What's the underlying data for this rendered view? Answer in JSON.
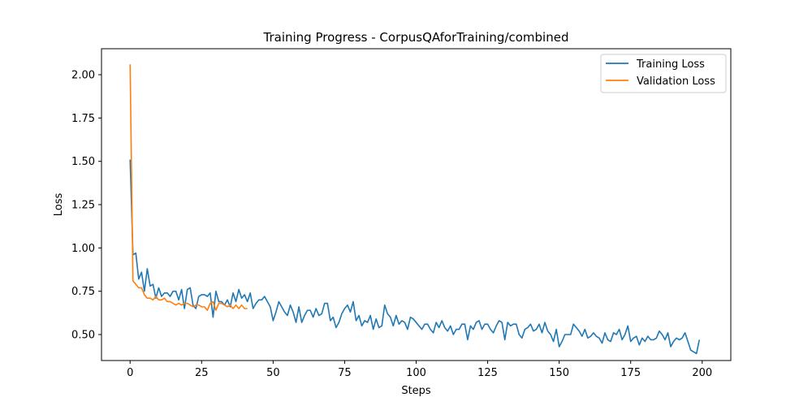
{
  "chart_data": {
    "type": "line",
    "title": "Training Progress - CorpusQAforTraining/combined",
    "xlabel": "Steps",
    "ylabel": "Loss",
    "xlim": [
      -10,
      210
    ],
    "ylim": [
      0.35,
      2.15
    ],
    "xticks": [
      0,
      25,
      50,
      75,
      100,
      125,
      150,
      175,
      200
    ],
    "yticks": [
      0.5,
      0.75,
      1.0,
      1.25,
      1.5,
      1.75,
      2.0
    ],
    "ytick_labels": [
      "0.50",
      "0.75",
      "1.00",
      "1.25",
      "1.50",
      "1.75",
      "2.00"
    ],
    "grid": false,
    "legend_position": "top-right",
    "series": [
      {
        "name": "Training Loss",
        "color": "#1f77b4",
        "x_start": 0,
        "x_step": 1,
        "values": [
          1.51,
          0.96,
          0.97,
          0.82,
          0.86,
          0.75,
          0.88,
          0.78,
          0.79,
          0.71,
          0.77,
          0.72,
          0.74,
          0.74,
          0.72,
          0.75,
          0.75,
          0.7,
          0.76,
          0.65,
          0.76,
          0.77,
          0.67,
          0.65,
          0.72,
          0.73,
          0.73,
          0.72,
          0.74,
          0.6,
          0.75,
          0.69,
          0.69,
          0.67,
          0.7,
          0.66,
          0.74,
          0.69,
          0.76,
          0.71,
          0.73,
          0.69,
          0.74,
          0.65,
          0.68,
          0.7,
          0.7,
          0.72,
          0.69,
          0.66,
          0.58,
          0.63,
          0.69,
          0.66,
          0.63,
          0.61,
          0.67,
          0.63,
          0.57,
          0.66,
          0.57,
          0.61,
          0.64,
          0.64,
          0.6,
          0.65,
          0.61,
          0.62,
          0.68,
          0.68,
          0.58,
          0.6,
          0.54,
          0.57,
          0.62,
          0.65,
          0.67,
          0.63,
          0.69,
          0.58,
          0.61,
          0.55,
          0.58,
          0.57,
          0.61,
          0.53,
          0.59,
          0.54,
          0.55,
          0.67,
          0.62,
          0.6,
          0.55,
          0.61,
          0.56,
          0.58,
          0.57,
          0.53,
          0.6,
          0.59,
          0.57,
          0.55,
          0.53,
          0.56,
          0.56,
          0.53,
          0.51,
          0.57,
          0.54,
          0.58,
          0.54,
          0.52,
          0.55,
          0.5,
          0.53,
          0.53,
          0.56,
          0.56,
          0.47,
          0.55,
          0.53,
          0.57,
          0.58,
          0.53,
          0.56,
          0.56,
          0.53,
          0.51,
          0.55,
          0.58,
          0.57,
          0.47,
          0.57,
          0.55,
          0.56,
          0.56,
          0.5,
          0.48,
          0.53,
          0.54,
          0.56,
          0.52,
          0.53,
          0.56,
          0.51,
          0.57,
          0.52,
          0.5,
          0.46,
          0.53,
          0.43,
          0.46,
          0.5,
          0.5,
          0.5,
          0.56,
          0.54,
          0.52,
          0.49,
          0.53,
          0.48,
          0.49,
          0.51,
          0.49,
          0.48,
          0.45,
          0.51,
          0.47,
          0.46,
          0.51,
          0.5,
          0.53,
          0.47,
          0.5,
          0.55,
          0.46,
          0.48,
          0.49,
          0.44,
          0.48,
          0.46,
          0.49,
          0.47,
          0.47,
          0.48,
          0.52,
          0.5,
          0.47,
          0.51,
          0.43,
          0.46,
          0.48,
          0.47,
          0.48,
          0.51,
          0.46,
          0.41,
          0.4,
          0.39,
          0.47
        ]
      },
      {
        "name": "Validation Loss",
        "color": "#ff7f0e",
        "x_start": 0,
        "x_step": 1,
        "values": [
          2.06,
          0.81,
          0.79,
          0.77,
          0.77,
          0.73,
          0.71,
          0.71,
          0.7,
          0.72,
          0.7,
          0.7,
          0.71,
          0.69,
          0.69,
          0.68,
          0.67,
          0.68,
          0.67,
          0.68,
          0.68,
          0.67,
          0.66,
          0.67,
          0.67,
          0.66,
          0.66,
          0.64,
          0.68,
          0.69,
          0.64,
          0.68,
          0.68,
          0.67,
          0.66,
          0.67,
          0.65,
          0.67,
          0.65,
          0.67,
          0.65,
          0.65
        ]
      }
    ]
  }
}
